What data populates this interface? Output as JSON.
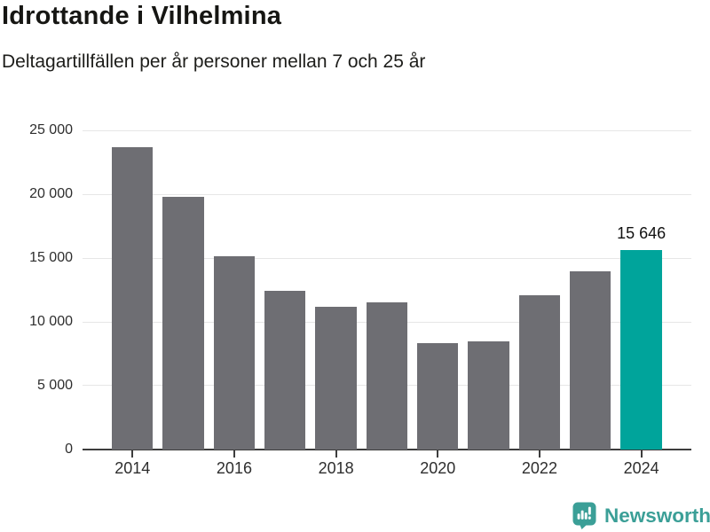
{
  "header": {
    "title": "Idrottande i Vilhelmina",
    "subtitle": "Deltagartillfällen per år personer mellan 7 och 25 år"
  },
  "chart_data": {
    "type": "bar",
    "title": "Idrottande i Vilhelmina",
    "subtitle": "Deltagartillfällen per år personer mellan 7 och 25 år",
    "categories": [
      2014,
      2015,
      2016,
      2017,
      2018,
      2019,
      2020,
      2021,
      2022,
      2023,
      2024
    ],
    "values": [
      23700,
      19800,
      15150,
      12400,
      11200,
      11550,
      8300,
      8500,
      12100,
      13950,
      15646
    ],
    "highlight_index": 10,
    "highlight_label": "15 646",
    "xticks": [
      2014,
      2016,
      2018,
      2020,
      2022,
      2024
    ],
    "ytick_interval": 5000,
    "ytick_labels": [
      "0",
      "5 000",
      "10 000",
      "15 000",
      "20 000",
      "25 000"
    ],
    "ylim": [
      0,
      25000
    ],
    "grid": "horizontal",
    "legend": "none",
    "bar_color": "#6e6e73",
    "highlight_color": "#00a49b"
  },
  "footer": {
    "brand": "Newsworthy",
    "brand_color": "#3b9f97",
    "logo_icon": "speech-bubble-bar-chart-icon"
  }
}
